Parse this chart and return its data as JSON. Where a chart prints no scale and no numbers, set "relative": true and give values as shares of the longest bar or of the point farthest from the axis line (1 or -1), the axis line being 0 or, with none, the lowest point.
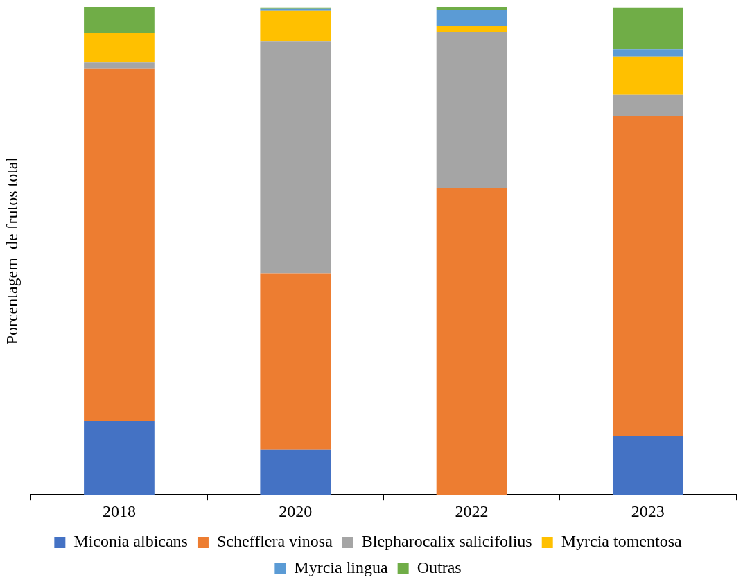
{
  "chart_data": {
    "type": "bar",
    "stacked": true,
    "relative": true,
    "ylabel": "Porcentagem  de frutos total",
    "legend": "bottom",
    "categories": [
      "2018",
      "2020",
      "2022",
      "2023"
    ],
    "series": [
      {
        "name": "Miconia albicans",
        "color": "#4472c4",
        "values": [
          0.151,
          0.093,
          0,
          0.121
        ]
      },
      {
        "name": "Schefflera vinosa",
        "color": "#ed7d31",
        "values": [
          0.723,
          0.361,
          0.629,
          0.655
        ]
      },
      {
        "name": "Blepharocalix salicifolius",
        "color": "#a5a5a5",
        "values": [
          0.012,
          0.476,
          0.32,
          0.044
        ]
      },
      {
        "name": "Myrcia tomentosa",
        "color": "#ffc000",
        "values": [
          0.061,
          0.062,
          0.012,
          0.078
        ]
      },
      {
        "name": "Myrcia lingua",
        "color": "#5b9bd5",
        "values": [
          0,
          0.004,
          0.033,
          0.015
        ]
      },
      {
        "name": "Outras",
        "color": "#70ad47",
        "values": [
          0.053,
          0.003,
          0.006,
          0.086
        ]
      }
    ]
  }
}
